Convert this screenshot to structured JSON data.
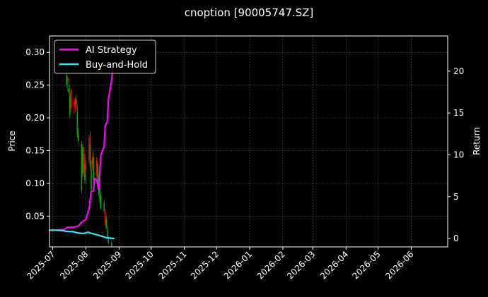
{
  "chart_data": {
    "type": "candlestick+line",
    "title": "cnoption [90005747.SZ]",
    "ylabel_left": "Price",
    "ylabel_right": "Return",
    "ylim_left": [
      0.003,
      0.325
    ],
    "ylim_right": [
      -1.0,
      24.2
    ],
    "xlim": [
      "2025-06-28",
      "2026-07-05"
    ],
    "yticks_left": [
      "0.05",
      "0.10",
      "0.15",
      "0.20",
      "0.25",
      "0.30"
    ],
    "yticks_left_values": [
      0.05,
      0.1,
      0.15,
      0.2,
      0.25,
      0.3
    ],
    "yticks_right": [
      "0",
      "5",
      "10",
      "15",
      "20"
    ],
    "yticks_right_values": [
      0,
      5,
      10,
      15,
      20
    ],
    "xticks": [
      "2025-07",
      "2025-08",
      "2025-09",
      "2025-10",
      "2025-11",
      "2025-12",
      "2026-01",
      "2026-02",
      "2026-03",
      "2026-04",
      "2026-05",
      "2026-06"
    ],
    "xticks_dates": [
      "2025-07-01",
      "2025-08-01",
      "2025-09-01",
      "2025-10-01",
      "2025-11-01",
      "2025-12-01",
      "2026-01-01",
      "2026-02-01",
      "2026-03-01",
      "2026-04-01",
      "2026-05-01",
      "2026-06-01"
    ],
    "grid": true,
    "legend_position": "top-left",
    "candles": [
      {
        "date": "2025-07-14",
        "o": 0.265,
        "h": 0.275,
        "l": 0.245,
        "c": 0.25
      },
      {
        "date": "2025-07-15",
        "o": 0.255,
        "h": 0.265,
        "l": 0.24,
        "c": 0.262
      },
      {
        "date": "2025-07-16",
        "o": 0.245,
        "h": 0.26,
        "l": 0.235,
        "c": 0.24
      },
      {
        "date": "2025-07-17",
        "o": 0.235,
        "h": 0.25,
        "l": 0.2,
        "c": 0.205
      },
      {
        "date": "2025-07-18",
        "o": 0.215,
        "h": 0.245,
        "l": 0.21,
        "c": 0.24
      },
      {
        "date": "2025-07-21",
        "o": 0.22,
        "h": 0.23,
        "l": 0.205,
        "c": 0.225
      },
      {
        "date": "2025-07-22",
        "o": 0.215,
        "h": 0.232,
        "l": 0.21,
        "c": 0.23
      },
      {
        "date": "2025-07-23",
        "o": 0.228,
        "h": 0.235,
        "l": 0.21,
        "c": 0.22
      },
      {
        "date": "2025-07-24",
        "o": 0.21,
        "h": 0.22,
        "l": 0.17,
        "c": 0.175
      },
      {
        "date": "2025-07-25",
        "o": 0.175,
        "h": 0.185,
        "l": 0.16,
        "c": 0.165
      },
      {
        "date": "2025-07-28",
        "o": 0.16,
        "h": 0.165,
        "l": 0.085,
        "c": 0.09
      },
      {
        "date": "2025-07-29",
        "o": 0.155,
        "h": 0.16,
        "l": 0.11,
        "c": 0.115
      },
      {
        "date": "2025-07-30",
        "o": 0.12,
        "h": 0.155,
        "l": 0.11,
        "c": 0.145
      },
      {
        "date": "2025-07-31",
        "o": 0.13,
        "h": 0.145,
        "l": 0.1,
        "c": 0.105
      },
      {
        "date": "2025-08-01",
        "o": 0.12,
        "h": 0.14,
        "l": 0.1,
        "c": 0.135
      },
      {
        "date": "2025-08-04",
        "o": 0.135,
        "h": 0.175,
        "l": 0.13,
        "c": 0.17
      },
      {
        "date": "2025-08-05",
        "o": 0.16,
        "h": 0.18,
        "l": 0.12,
        "c": 0.125
      },
      {
        "date": "2025-08-06",
        "o": 0.12,
        "h": 0.135,
        "l": 0.085,
        "c": 0.09
      },
      {
        "date": "2025-08-07",
        "o": 0.13,
        "h": 0.145,
        "l": 0.12,
        "c": 0.14
      },
      {
        "date": "2025-08-08",
        "o": 0.14,
        "h": 0.15,
        "l": 0.1,
        "c": 0.105
      },
      {
        "date": "2025-08-11",
        "o": 0.115,
        "h": 0.14,
        "l": 0.11,
        "c": 0.135
      },
      {
        "date": "2025-08-12",
        "o": 0.13,
        "h": 0.135,
        "l": 0.09,
        "c": 0.095
      },
      {
        "date": "2025-08-13",
        "o": 0.11,
        "h": 0.115,
        "l": 0.08,
        "c": 0.085
      },
      {
        "date": "2025-08-14",
        "o": 0.095,
        "h": 0.1,
        "l": 0.07,
        "c": 0.075
      },
      {
        "date": "2025-08-15",
        "o": 0.08,
        "h": 0.085,
        "l": 0.06,
        "c": 0.062
      },
      {
        "date": "2025-08-18",
        "o": 0.07,
        "h": 0.075,
        "l": 0.055,
        "c": 0.058
      },
      {
        "date": "2025-08-19",
        "o": 0.04,
        "h": 0.06,
        "l": 0.035,
        "c": 0.055
      },
      {
        "date": "2025-08-20",
        "o": 0.045,
        "h": 0.05,
        "l": 0.03,
        "c": 0.032
      },
      {
        "date": "2025-08-21",
        "o": 0.03,
        "h": 0.035,
        "l": 0.015,
        "c": 0.018
      },
      {
        "date": "2025-08-22",
        "o": 0.015,
        "h": 0.02,
        "l": 0.007,
        "c": 0.009
      },
      {
        "date": "2025-08-25",
        "o": 0.009,
        "h": 0.012,
        "l": 0.003,
        "c": 0.004
      }
    ],
    "series": [
      {
        "name": "AI Strategy",
        "color": "#ff00ff",
        "x": [
          "2025-06-28",
          "2025-07-05",
          "2025-07-12",
          "2025-07-15",
          "2025-07-20",
          "2025-07-25",
          "2025-07-28",
          "2025-08-01",
          "2025-08-04",
          "2025-08-06",
          "2025-08-08",
          "2025-08-09",
          "2025-08-11",
          "2025-08-13",
          "2025-08-15",
          "2025-08-18",
          "2025-08-19",
          "2025-08-21",
          "2025-08-22",
          "2025-08-25",
          "2025-08-26"
        ],
        "values": [
          1.0,
          1.0,
          1.1,
          1.35,
          1.35,
          1.5,
          1.95,
          2.3,
          3.6,
          5.6,
          5.7,
          7.2,
          7.0,
          5.9,
          10.0,
          11.0,
          13.4,
          14.0,
          16.6,
          18.9,
          20.3
        ]
      },
      {
        "name": "Buy-and-Hold",
        "color": "#33e6f0",
        "x": [
          "2025-06-28",
          "2025-07-05",
          "2025-07-10",
          "2025-07-14",
          "2025-07-20",
          "2025-07-25",
          "2025-07-30",
          "2025-08-03",
          "2025-08-08",
          "2025-08-13",
          "2025-08-20",
          "2025-08-27"
        ],
        "values": [
          1.0,
          1.0,
          0.95,
          0.85,
          0.82,
          0.65,
          0.6,
          0.75,
          0.55,
          0.4,
          0.1,
          0.0
        ]
      }
    ]
  },
  "colors": {
    "background": "#000000",
    "candle_up": "#ff0000",
    "candle_down": "#00b000",
    "grid": "#666666"
  }
}
